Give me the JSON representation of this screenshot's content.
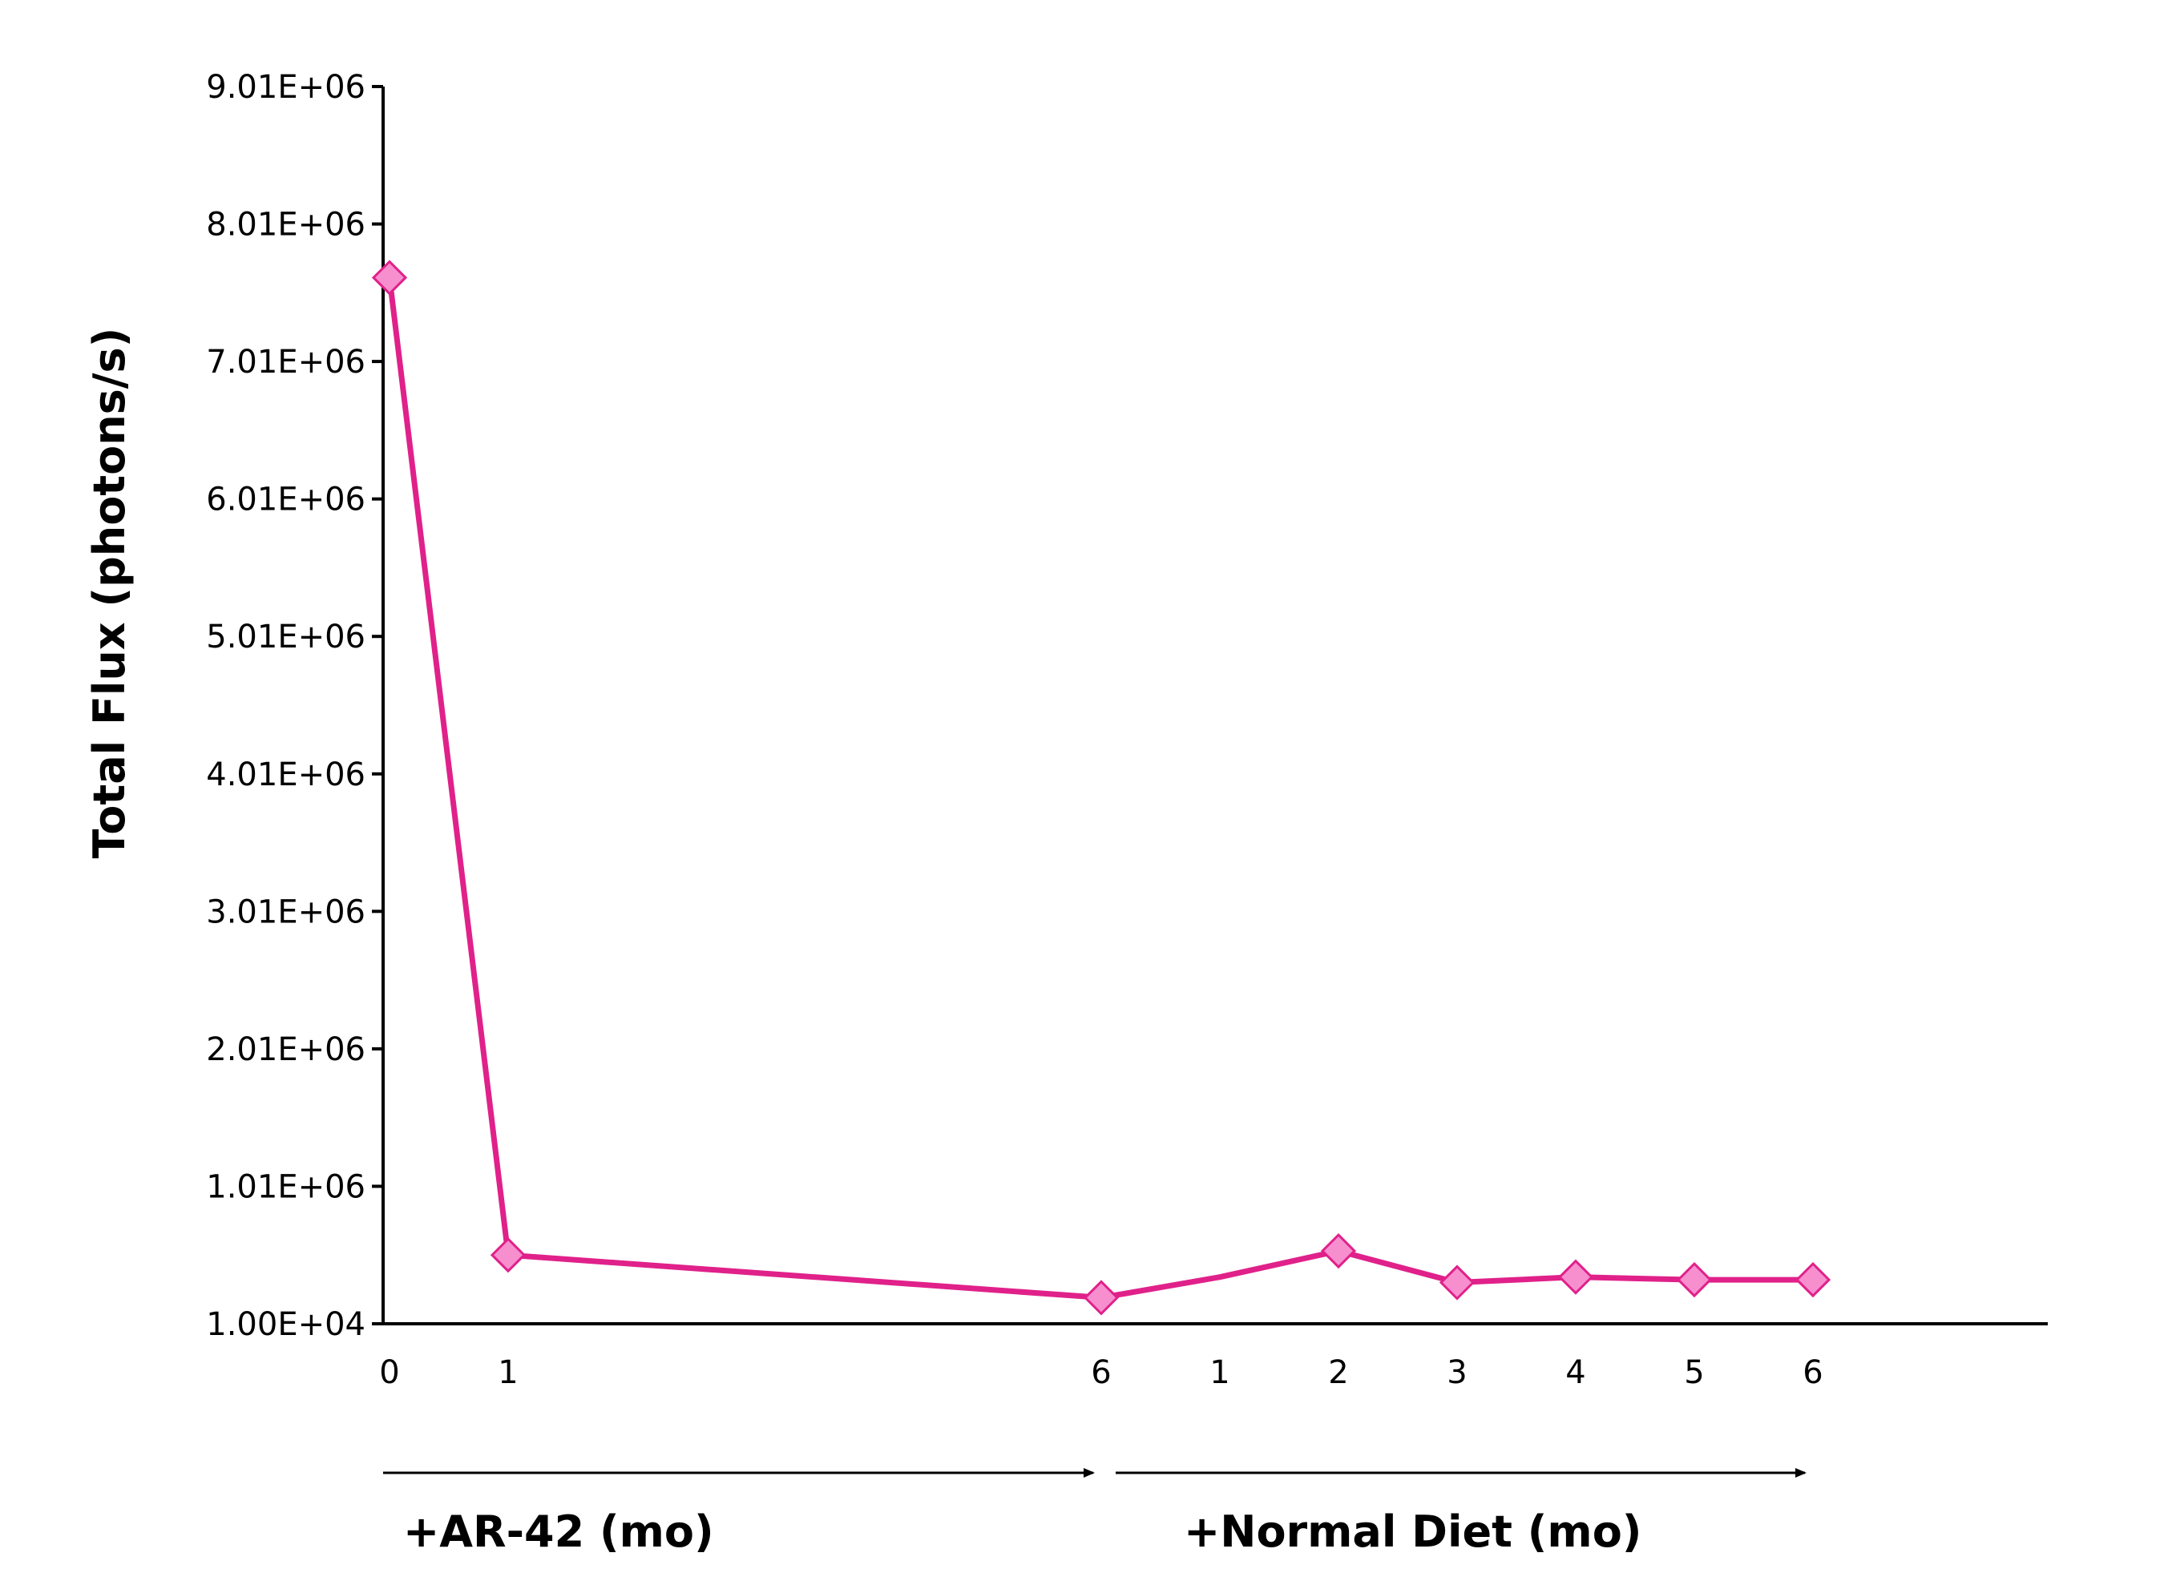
{
  "chart_data": {
    "type": "line",
    "title": "",
    "ylabel": "Total Flux (photons/s)",
    "xlabel": "",
    "ylim": [
      10000,
      9010000
    ],
    "yticks": [
      "1.00E+04",
      "1.01E+06",
      "2.01E+06",
      "3.01E+06",
      "4.01E+06",
      "5.01E+06",
      "6.01E+06",
      "7.01E+06",
      "8.01E+06",
      "9.01E+06"
    ],
    "ytick_values": [
      10000,
      1010000,
      2010000,
      3010000,
      4010000,
      5010000,
      6010000,
      7010000,
      8010000,
      9010000
    ],
    "x_ticks": [
      {
        "label": "0",
        "t": 0
      },
      {
        "label": "1",
        "t": 1
      },
      {
        "label": "6",
        "t": 6
      },
      {
        "label": "1",
        "t": 7
      },
      {
        "label": "2",
        "t": 8
      },
      {
        "label": "3",
        "t": 9
      },
      {
        "label": "4",
        "t": 10
      },
      {
        "label": "5",
        "t": 11
      },
      {
        "label": "6",
        "t": 12
      }
    ],
    "xlim": [
      0,
      14
    ],
    "series": [
      {
        "name": "Total Flux",
        "color": "#e0218a",
        "marker_fill": "#f78fcf",
        "points": [
          {
            "t": 0,
            "y": 7620000,
            "marker": true
          },
          {
            "t": 1,
            "y": 510000,
            "marker": true
          },
          {
            "t": 6,
            "y": 200000,
            "marker": true
          },
          {
            "t": 7,
            "y": 350000,
            "marker": false
          },
          {
            "t": 8,
            "y": 540000,
            "marker": true
          },
          {
            "t": 9,
            "y": 310000,
            "marker": true
          },
          {
            "t": 10,
            "y": 350000,
            "marker": true
          },
          {
            "t": 11,
            "y": 330000,
            "marker": true
          },
          {
            "t": 12,
            "y": 330000,
            "marker": true
          }
        ]
      }
    ],
    "phases": [
      {
        "label": "+AR-42 (mo)",
        "from_t": 0,
        "to_t": 6
      },
      {
        "label": "+Normal Diet (mo)",
        "from_t": 6,
        "to_t": 12
      }
    ],
    "grid": false,
    "legend": "none"
  }
}
